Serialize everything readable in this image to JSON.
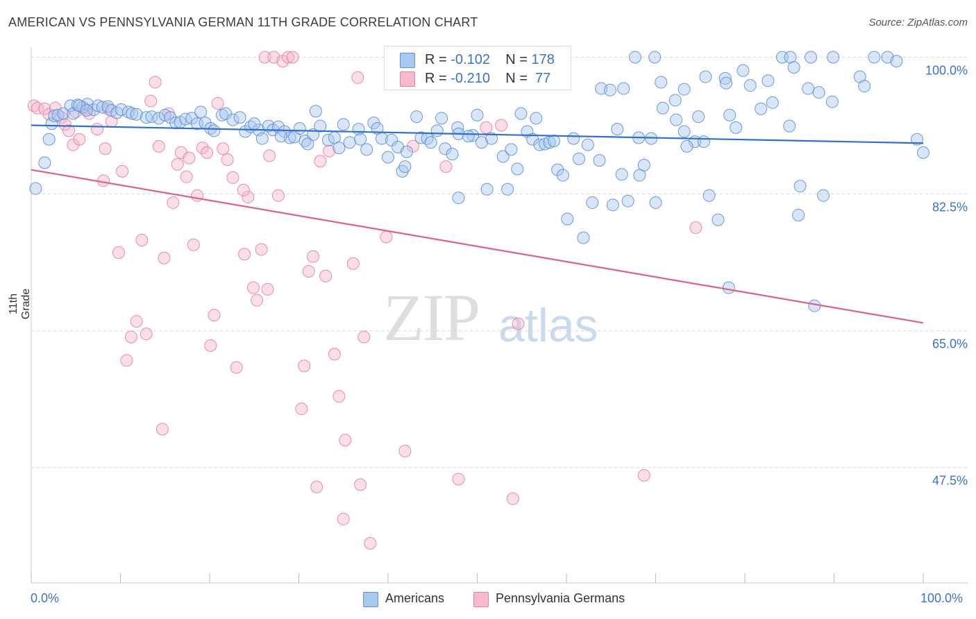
{
  "title": "AMERICAN VS PENNSYLVANIA GERMAN 11TH GRADE CORRELATION CHART",
  "source": "Source: ZipAtlas.com",
  "watermark": {
    "zip": "ZIP",
    "atlas": "atlas"
  },
  "legend": {
    "rows": [
      {
        "r_label": "R = ",
        "r_value": "-0.102",
        "n_label": "N = ",
        "n_value": "178",
        "color": "#a9c8f0"
      },
      {
        "r_label": "R = ",
        "r_value": "-0.210",
        "n_label": "N = ",
        "n_value": " 77",
        "color": "#f7b9cc"
      }
    ]
  },
  "bottom_legend": [
    {
      "label": "Americans",
      "color": "#a9c8f0"
    },
    {
      "label": "Pennsylvania Germans",
      "color": "#f7b9cc"
    }
  ],
  "x_tick_left": "0.0%",
  "x_tick_right": "100.0%",
  "colors": {
    "blue_fill": "#a9c8f0",
    "blue_stroke": "#5b8fd6",
    "blue_line": "#2f6fd0",
    "pink_fill": "#f7b9cc",
    "pink_stroke": "#e57fa0",
    "pink_line": "#e0608a",
    "tick_text": "#3a72c8",
    "grid": "#d8d8d8"
  },
  "chart_data": {
    "type": "scatter",
    "title": "AMERICAN VS PENNSYLVANIA GERMAN 11TH GRADE CORRELATION CHART",
    "xlabel": "",
    "ylabel": "11th Grade",
    "xlim": [
      0,
      100
    ],
    "ylim": [
      34.5,
      102
    ],
    "y_ticks": [
      {
        "value": 100.0,
        "label": "100.0%"
      },
      {
        "value": 82.5,
        "label": "82.5%"
      },
      {
        "value": 65.0,
        "label": "65.0%"
      },
      {
        "value": 47.5,
        "label": "47.5%"
      }
    ],
    "x_ticks": [
      {
        "value": 0,
        "label": "0.0%"
      },
      {
        "value": 100,
        "label": "100.0%"
      }
    ],
    "grid": "horizontal dashed",
    "series": [
      {
        "name": "Americans",
        "trend": {
          "x": [
            0,
            100
          ],
          "y": [
            91.3,
            89.0
          ]
        },
        "points": [
          [
            0.5,
            83.2
          ],
          [
            1.5,
            86.5
          ],
          [
            2.0,
            89.5
          ],
          [
            2.3,
            91.5
          ],
          [
            2.6,
            92.5
          ],
          [
            3.0,
            92.6
          ],
          [
            3.6,
            92.8
          ],
          [
            4.4,
            93.8
          ],
          [
            4.7,
            92.8
          ],
          [
            5.2,
            93.9
          ],
          [
            5.8,
            93.6
          ],
          [
            6.3,
            94.0
          ],
          [
            7.0,
            93.3
          ],
          [
            7.5,
            93.8
          ],
          [
            8.0,
            93.6
          ],
          [
            8.6,
            93.7
          ],
          [
            9.0,
            93.2
          ],
          [
            9.6,
            92.9
          ],
          [
            10.1,
            93.3
          ],
          [
            10.9,
            93.0
          ],
          [
            11.3,
            92.8
          ],
          [
            11.8,
            92.7
          ],
          [
            12.9,
            92.3
          ],
          [
            13.5,
            92.4
          ],
          [
            14.3,
            92.2
          ],
          [
            15.0,
            92.6
          ],
          [
            15.6,
            92.3
          ],
          [
            16.2,
            91.6
          ],
          [
            16.7,
            91.7
          ],
          [
            17.3,
            92.1
          ],
          [
            18.0,
            92.2
          ],
          [
            18.6,
            91.5
          ],
          [
            19.5,
            91.6
          ],
          [
            20.1,
            90.9
          ],
          [
            20.5,
            90.6
          ],
          [
            21.4,
            92.6
          ],
          [
            21.8,
            92.8
          ],
          [
            22.6,
            92.0
          ],
          [
            23.4,
            92.3
          ],
          [
            24.0,
            90.5
          ],
          [
            24.6,
            91.1
          ],
          [
            25.5,
            90.7
          ],
          [
            25.9,
            89.6
          ],
          [
            26.6,
            91.2
          ],
          [
            27.1,
            90.7
          ],
          [
            27.7,
            91.1
          ],
          [
            28.4,
            90.5
          ],
          [
            29.0,
            89.7
          ],
          [
            29.5,
            89.8
          ],
          [
            30.1,
            90.9
          ],
          [
            30.7,
            89.3
          ],
          [
            31.6,
            90.1
          ],
          [
            31.9,
            93.1
          ],
          [
            32.4,
            91.2
          ],
          [
            33.3,
            89.4
          ],
          [
            34.0,
            89.7
          ],
          [
            34.5,
            88.4
          ],
          [
            35.0,
            91.4
          ],
          [
            35.7,
            89.1
          ],
          [
            36.7,
            90.8
          ],
          [
            37.6,
            88.2
          ],
          [
            38.4,
            91.6
          ],
          [
            38.8,
            90.9
          ],
          [
            39.3,
            89.6
          ],
          [
            40.0,
            87.2
          ],
          [
            40.4,
            89.4
          ],
          [
            41.1,
            88.5
          ],
          [
            41.6,
            85.4
          ],
          [
            42.1,
            87.9
          ],
          [
            43.2,
            92.4
          ],
          [
            43.7,
            89.7
          ],
          [
            44.4,
            89.6
          ],
          [
            44.8,
            89.1
          ],
          [
            45.5,
            90.6
          ],
          [
            46.0,
            92.2
          ],
          [
            46.4,
            88.3
          ],
          [
            47.2,
            87.6
          ],
          [
            47.8,
            91.0
          ],
          [
            47.9,
            82.0
          ],
          [
            49.5,
            90.0
          ],
          [
            50.0,
            92.6
          ],
          [
            50.5,
            89.1
          ],
          [
            51.1,
            83.1
          ],
          [
            51.6,
            89.6
          ],
          [
            52.9,
            87.3
          ],
          [
            53.4,
            83.1
          ],
          [
            53.8,
            88.2
          ],
          [
            54.5,
            85.7
          ],
          [
            54.9,
            92.8
          ],
          [
            55.6,
            90.5
          ],
          [
            56.2,
            89.5
          ],
          [
            56.6,
            92.2
          ],
          [
            57.0,
            88.8
          ],
          [
            57.6,
            88.9
          ],
          [
            58.1,
            89.1
          ],
          [
            58.6,
            89.3
          ],
          [
            59.0,
            85.6
          ],
          [
            59.6,
            84.9
          ],
          [
            60.1,
            79.3
          ],
          [
            60.8,
            89.6
          ],
          [
            61.4,
            87.0
          ],
          [
            61.9,
            76.9
          ],
          [
            62.4,
            88.8
          ],
          [
            62.9,
            81.4
          ],
          [
            63.7,
            86.8
          ],
          [
            63.9,
            96.0
          ],
          [
            64.9,
            95.8
          ],
          [
            65.2,
            81.1
          ],
          [
            65.7,
            90.8
          ],
          [
            66.4,
            96.0
          ],
          [
            66.9,
            81.6
          ],
          [
            67.7,
            100.0
          ],
          [
            68.1,
            89.7
          ],
          [
            68.7,
            86.2
          ],
          [
            69.5,
            89.6
          ],
          [
            69.9,
            100.0
          ],
          [
            70.0,
            81.4
          ],
          [
            70.6,
            96.8
          ],
          [
            72.2,
            94.5
          ],
          [
            73.2,
            95.9
          ],
          [
            73.2,
            90.5
          ],
          [
            74.4,
            89.2
          ],
          [
            75.4,
            89.2
          ],
          [
            75.6,
            97.5
          ],
          [
            76.0,
            82.3
          ],
          [
            77.0,
            79.2
          ],
          [
            77.8,
            97.3
          ],
          [
            77.9,
            96.7
          ],
          [
            78.3,
            92.6
          ],
          [
            78.2,
            70.5
          ],
          [
            79.8,
            98.3
          ],
          [
            80.6,
            96.4
          ],
          [
            81.8,
            93.4
          ],
          [
            82.6,
            97.0
          ],
          [
            84.2,
            100.0
          ],
          [
            85.1,
            100.0
          ],
          [
            85.5,
            98.7
          ],
          [
            86.0,
            79.8
          ],
          [
            86.2,
            83.5
          ],
          [
            87.1,
            96.0
          ],
          [
            87.8,
            68.2
          ],
          [
            88.8,
            82.3
          ],
          [
            88.3,
            95.5
          ],
          [
            87.4,
            100.0
          ],
          [
            89.9,
            100.0
          ],
          [
            92.9,
            97.5
          ],
          [
            93.4,
            96.3
          ],
          [
            94.5,
            100.0
          ],
          [
            96.0,
            100.0
          ],
          [
            97.0,
            99.5
          ],
          [
            99.3,
            89.5
          ],
          [
            100.0,
            87.8
          ],
          [
            83.1,
            94.2
          ],
          [
            85.0,
            91.2
          ],
          [
            89.8,
            94.3
          ],
          [
            68.2,
            84.9
          ],
          [
            70.8,
            93.5
          ],
          [
            72.3,
            92.0
          ],
          [
            73.5,
            88.6
          ],
          [
            74.8,
            92.4
          ],
          [
            79.0,
            91.0
          ],
          [
            66.2,
            85.0
          ],
          [
            47.9,
            90.2
          ],
          [
            49.0,
            89.9
          ],
          [
            36.9,
            89.5
          ],
          [
            19.0,
            93.0
          ],
          [
            25.0,
            91.5
          ],
          [
            28.0,
            89.9
          ],
          [
            31.0,
            88.9
          ],
          [
            41.9,
            86.0
          ],
          [
            5.4,
            93.8
          ],
          [
            6.2,
            93.2
          ]
        ]
      },
      {
        "name": "Pennsylvania Germans",
        "trend": {
          "x": [
            0,
            100
          ],
          "y": [
            85.6,
            66.0
          ]
        },
        "points": [
          [
            0.3,
            93.8
          ],
          [
            0.7,
            93.5
          ],
          [
            1.5,
            93.4
          ],
          [
            2.0,
            92.7
          ],
          [
            2.7,
            93.5
          ],
          [
            3.4,
            92.3
          ],
          [
            3.8,
            91.4
          ],
          [
            4.2,
            90.6
          ],
          [
            4.7,
            88.8
          ],
          [
            5.0,
            93.0
          ],
          [
            5.4,
            89.5
          ],
          [
            6.0,
            93.4
          ],
          [
            6.5,
            92.8
          ],
          [
            7.4,
            90.8
          ],
          [
            8.1,
            84.2
          ],
          [
            8.3,
            88.3
          ],
          [
            8.6,
            93.4
          ],
          [
            9.0,
            91.8
          ],
          [
            9.8,
            75.0
          ],
          [
            10.2,
            85.4
          ],
          [
            10.7,
            61.2
          ],
          [
            11.2,
            64.2
          ],
          [
            11.8,
            66.2
          ],
          [
            12.4,
            76.6
          ],
          [
            12.9,
            64.6
          ],
          [
            13.4,
            94.4
          ],
          [
            13.9,
            96.8
          ],
          [
            14.3,
            88.6
          ],
          [
            14.7,
            52.4
          ],
          [
            14.9,
            74.3
          ],
          [
            15.4,
            92.8
          ],
          [
            15.9,
            81.4
          ],
          [
            16.4,
            86.3
          ],
          [
            16.8,
            87.8
          ],
          [
            17.4,
            84.7
          ],
          [
            18.2,
            76.0
          ],
          [
            18.6,
            82.3
          ],
          [
            19.2,
            88.4
          ],
          [
            19.7,
            87.8
          ],
          [
            20.1,
            63.1
          ],
          [
            20.5,
            67.0
          ],
          [
            20.9,
            94.1
          ],
          [
            21.5,
            88.3
          ],
          [
            22.0,
            86.9
          ],
          [
            22.6,
            84.6
          ],
          [
            23.0,
            60.3
          ],
          [
            23.9,
            74.8
          ],
          [
            24.3,
            82.1
          ],
          [
            24.9,
            70.5
          ],
          [
            25.3,
            68.9
          ],
          [
            25.8,
            75.4
          ],
          [
            26.2,
            100.0
          ],
          [
            26.7,
            87.4
          ],
          [
            27.2,
            100.0
          ],
          [
            27.7,
            82.3
          ],
          [
            28.2,
            99.5
          ],
          [
            28.8,
            100.0
          ],
          [
            29.3,
            100.0
          ],
          [
            30.3,
            55.0
          ],
          [
            31.1,
            72.6
          ],
          [
            31.6,
            74.5
          ],
          [
            32.0,
            45.0
          ],
          [
            32.4,
            86.7
          ],
          [
            33.0,
            72.0
          ],
          [
            33.4,
            88.0
          ],
          [
            34.0,
            62.0
          ],
          [
            34.5,
            56.6
          ],
          [
            35.2,
            51.0
          ],
          [
            36.1,
            73.6
          ],
          [
            36.6,
            97.4
          ],
          [
            37.3,
            64.2
          ],
          [
            38.0,
            37.8
          ],
          [
            39.8,
            77.0
          ],
          [
            41.3,
            100.0
          ],
          [
            41.9,
            49.6
          ],
          [
            42.8,
            88.6
          ],
          [
            46.5,
            86.0
          ],
          [
            47.9,
            46.0
          ],
          [
            49.0,
            100.0
          ],
          [
            51.0,
            91.0
          ],
          [
            54.0,
            43.5
          ],
          [
            58.5,
            100.0
          ],
          [
            74.5,
            78.2
          ],
          [
            68.7,
            46.5
          ],
          [
            52.7,
            91.3
          ],
          [
            54.6,
            65.9
          ],
          [
            30.6,
            60.5
          ],
          [
            26.5,
            70.3
          ],
          [
            23.8,
            83.0
          ],
          [
            17.7,
            87.1
          ],
          [
            36.9,
            45.3
          ],
          [
            35.0,
            40.9
          ]
        ]
      }
    ]
  }
}
